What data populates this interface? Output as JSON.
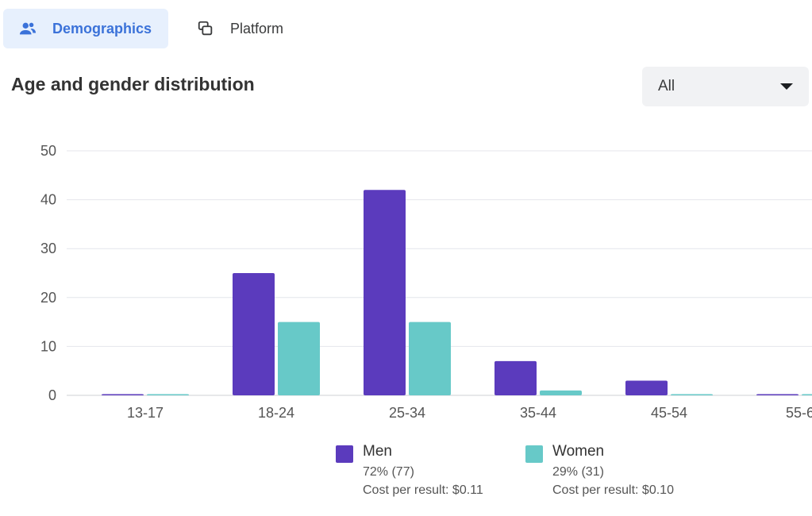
{
  "tabs": [
    {
      "label": "Demographics",
      "icon": "people-icon",
      "active": true
    },
    {
      "label": "Platform",
      "icon": "platform-icon",
      "active": false
    }
  ],
  "section_title": "Age and gender distribution",
  "filter": {
    "selected": "All"
  },
  "colors": {
    "men": "#5b3bbd",
    "women": "#67c9c8",
    "accent": "#3b72d9",
    "active_tab_bg": "#e7f0fd"
  },
  "chart_data": {
    "type": "bar",
    "categories": [
      "13-17",
      "18-24",
      "25-34",
      "35-44",
      "45-54",
      "55-6"
    ],
    "series": [
      {
        "name": "Men",
        "values": [
          0.2,
          25,
          42,
          7,
          3,
          0.2
        ]
      },
      {
        "name": "Women",
        "values": [
          0.2,
          15,
          15,
          1,
          0.2,
          0.2
        ]
      }
    ],
    "ylim": [
      0,
      50
    ],
    "yticks": [
      0,
      10,
      20,
      30,
      40,
      50
    ],
    "grid": true,
    "legend": "bottom"
  },
  "legend": [
    {
      "name": "Men",
      "share": "72% (77)",
      "cost": "Cost per result: $0.11"
    },
    {
      "name": "Women",
      "share": "29% (31)",
      "cost": "Cost per result: $0.10"
    }
  ]
}
